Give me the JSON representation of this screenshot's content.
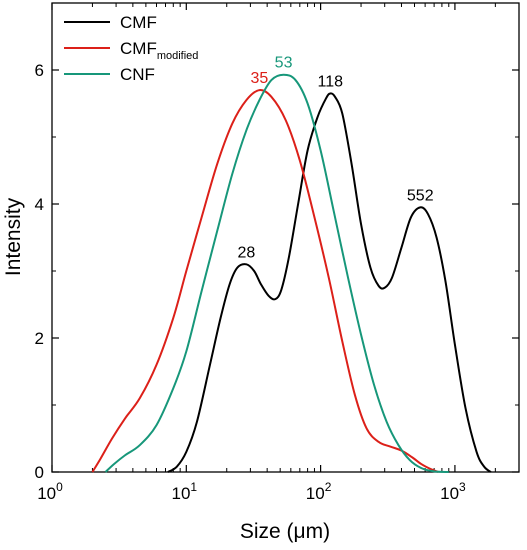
{
  "chart_data": {
    "type": "line",
    "xlabel": "Size (μm)",
    "ylabel": "Intensity",
    "x_scale": "log",
    "xlim": [
      1,
      3000
    ],
    "ylim": [
      0,
      7
    ],
    "grid": false,
    "legend_position": "top-left",
    "x_ticks": [
      {
        "value": 1,
        "base": "10",
        "exp": "0"
      },
      {
        "value": 10,
        "base": "10",
        "exp": "1"
      },
      {
        "value": 100,
        "base": "10",
        "exp": "2"
      },
      {
        "value": 1000,
        "base": "10",
        "exp": "3"
      }
    ],
    "y_ticks": [
      {
        "value": 0,
        "label": "0"
      },
      {
        "value": 2,
        "label": "2"
      },
      {
        "value": 4,
        "label": "4"
      },
      {
        "value": 6,
        "label": "6"
      }
    ],
    "series": [
      {
        "name": "CMF",
        "legend_main": "CMF",
        "legend_sub": "",
        "color": "#000000",
        "points": [
          [
            7.3,
            0
          ],
          [
            8.5,
            0.08
          ],
          [
            10,
            0.3
          ],
          [
            12,
            0.75
          ],
          [
            15,
            1.6
          ],
          [
            18,
            2.3
          ],
          [
            21,
            2.8
          ],
          [
            24,
            3.05
          ],
          [
            28,
            3.1
          ],
          [
            32,
            3.0
          ],
          [
            36,
            2.8
          ],
          [
            41,
            2.63
          ],
          [
            46,
            2.58
          ],
          [
            51,
            2.72
          ],
          [
            58,
            3.2
          ],
          [
            68,
            4.0
          ],
          [
            80,
            4.8
          ],
          [
            95,
            5.3
          ],
          [
            110,
            5.58
          ],
          [
            118,
            5.65
          ],
          [
            128,
            5.6
          ],
          [
            145,
            5.35
          ],
          [
            170,
            4.6
          ],
          [
            200,
            3.7
          ],
          [
            235,
            3.05
          ],
          [
            270,
            2.78
          ],
          [
            300,
            2.75
          ],
          [
            340,
            2.9
          ],
          [
            400,
            3.35
          ],
          [
            470,
            3.8
          ],
          [
            552,
            3.95
          ],
          [
            630,
            3.85
          ],
          [
            730,
            3.5
          ],
          [
            850,
            2.85
          ],
          [
            1000,
            1.9
          ],
          [
            1200,
            0.95
          ],
          [
            1450,
            0.3
          ],
          [
            1650,
            0.08
          ],
          [
            1850,
            0
          ]
        ]
      },
      {
        "name": "CMFmodified",
        "legend_main": "CMF",
        "legend_sub": "modified",
        "color": "#dc2019",
        "points": [
          [
            2,
            0
          ],
          [
            2.3,
            0.2
          ],
          [
            2.8,
            0.5
          ],
          [
            3.5,
            0.8
          ],
          [
            4.5,
            1.1
          ],
          [
            6,
            1.6
          ],
          [
            8,
            2.3
          ],
          [
            10,
            3.0
          ],
          [
            13,
            3.8
          ],
          [
            17,
            4.6
          ],
          [
            22,
            5.2
          ],
          [
            28,
            5.55
          ],
          [
            35,
            5.7
          ],
          [
            43,
            5.6
          ],
          [
            55,
            5.25
          ],
          [
            70,
            4.65
          ],
          [
            90,
            3.8
          ],
          [
            115,
            2.9
          ],
          [
            145,
            1.95
          ],
          [
            180,
            1.15
          ],
          [
            220,
            0.65
          ],
          [
            270,
            0.45
          ],
          [
            330,
            0.38
          ],
          [
            400,
            0.32
          ],
          [
            480,
            0.22
          ],
          [
            560,
            0.12
          ],
          [
            650,
            0.05
          ],
          [
            750,
            0
          ]
        ]
      },
      {
        "name": "CNF",
        "legend_main": "CNF",
        "legend_sub": "",
        "color": "#17977a",
        "points": [
          [
            2.5,
            0
          ],
          [
            2.9,
            0.12
          ],
          [
            3.5,
            0.25
          ],
          [
            4.5,
            0.4
          ],
          [
            6,
            0.7
          ],
          [
            8,
            1.25
          ],
          [
            10,
            1.8
          ],
          [
            13,
            2.7
          ],
          [
            17,
            3.6
          ],
          [
            22,
            4.45
          ],
          [
            28,
            5.1
          ],
          [
            35,
            5.55
          ],
          [
            43,
            5.85
          ],
          [
            53,
            5.93
          ],
          [
            65,
            5.85
          ],
          [
            80,
            5.5
          ],
          [
            100,
            4.8
          ],
          [
            125,
            3.9
          ],
          [
            160,
            2.9
          ],
          [
            200,
            2.05
          ],
          [
            250,
            1.3
          ],
          [
            310,
            0.75
          ],
          [
            380,
            0.4
          ],
          [
            460,
            0.18
          ],
          [
            560,
            0.06
          ],
          [
            700,
            0.01
          ],
          [
            900,
            0
          ]
        ]
      }
    ],
    "annotations": [
      {
        "text": "28",
        "x": 28,
        "y": 3.1,
        "color": "#000000"
      },
      {
        "text": "35",
        "x": 35,
        "y": 5.7,
        "color": "#dc2019"
      },
      {
        "text": "53",
        "x": 53,
        "y": 5.93,
        "color": "#17977a"
      },
      {
        "text": "118",
        "x": 118,
        "y": 5.65,
        "color": "#000000"
      },
      {
        "text": "552",
        "x": 552,
        "y": 3.95,
        "color": "#000000"
      }
    ]
  }
}
